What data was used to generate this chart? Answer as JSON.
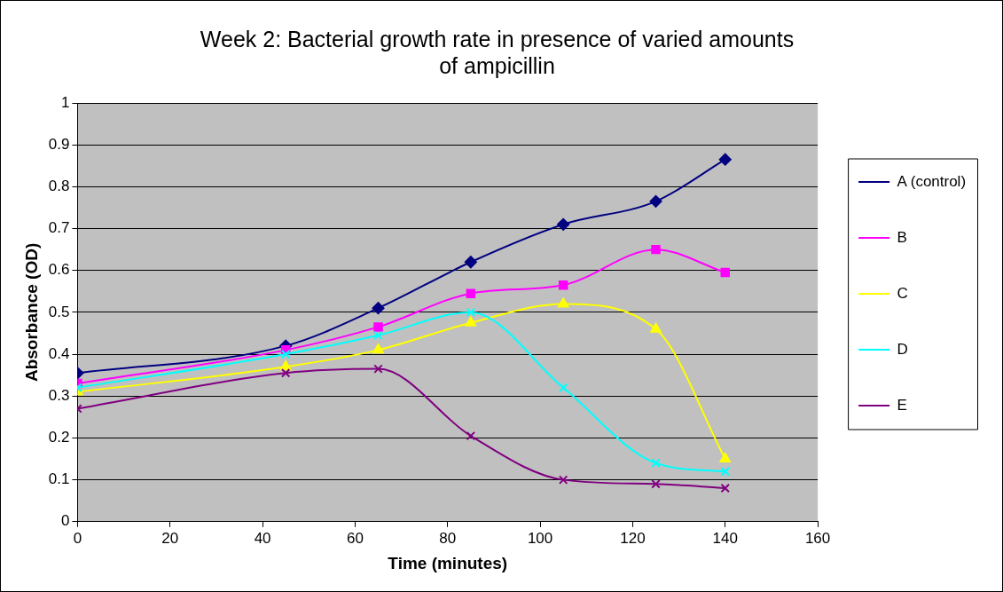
{
  "chart_data": {
    "type": "line",
    "title": "Week 2: Bacterial growth rate in presence of varied amounts of ampicillin",
    "xlabel": "Time (minutes)",
    "ylabel": "Absorbance (OD)",
    "x": [
      0,
      45,
      65,
      85,
      105,
      125,
      140
    ],
    "xlim": [
      0,
      160
    ],
    "xticks": [
      0,
      20,
      40,
      60,
      80,
      100,
      120,
      140,
      160
    ],
    "ylim": [
      0,
      1
    ],
    "yticks": [
      0,
      0.1,
      0.2,
      0.3,
      0.4,
      0.5,
      0.6,
      0.7,
      0.8,
      0.9,
      1
    ],
    "grid": "y",
    "legend": "right",
    "series": [
      {
        "name": "A (control)",
        "color": "#000080",
        "marker": "diamond",
        "values": [
          0.355,
          0.42,
          0.51,
          0.62,
          0.71,
          0.765,
          0.865
        ]
      },
      {
        "name": "B",
        "color": "#ff00ff",
        "marker": "square",
        "values": [
          0.33,
          0.41,
          0.465,
          0.545,
          0.565,
          0.65,
          0.595
        ]
      },
      {
        "name": "C",
        "color": "#ffff00",
        "marker": "triangle",
        "values": [
          0.31,
          0.37,
          0.41,
          0.475,
          0.52,
          0.46,
          0.15
        ]
      },
      {
        "name": "D",
        "color": "#00ffff",
        "marker": "cross",
        "values": [
          0.32,
          0.4,
          0.445,
          0.5,
          0.32,
          0.14,
          0.12
        ]
      },
      {
        "name": "E",
        "color": "#800080",
        "marker": "cross",
        "values": [
          0.27,
          0.355,
          0.365,
          0.205,
          0.1,
          0.09,
          0.08
        ]
      }
    ]
  }
}
